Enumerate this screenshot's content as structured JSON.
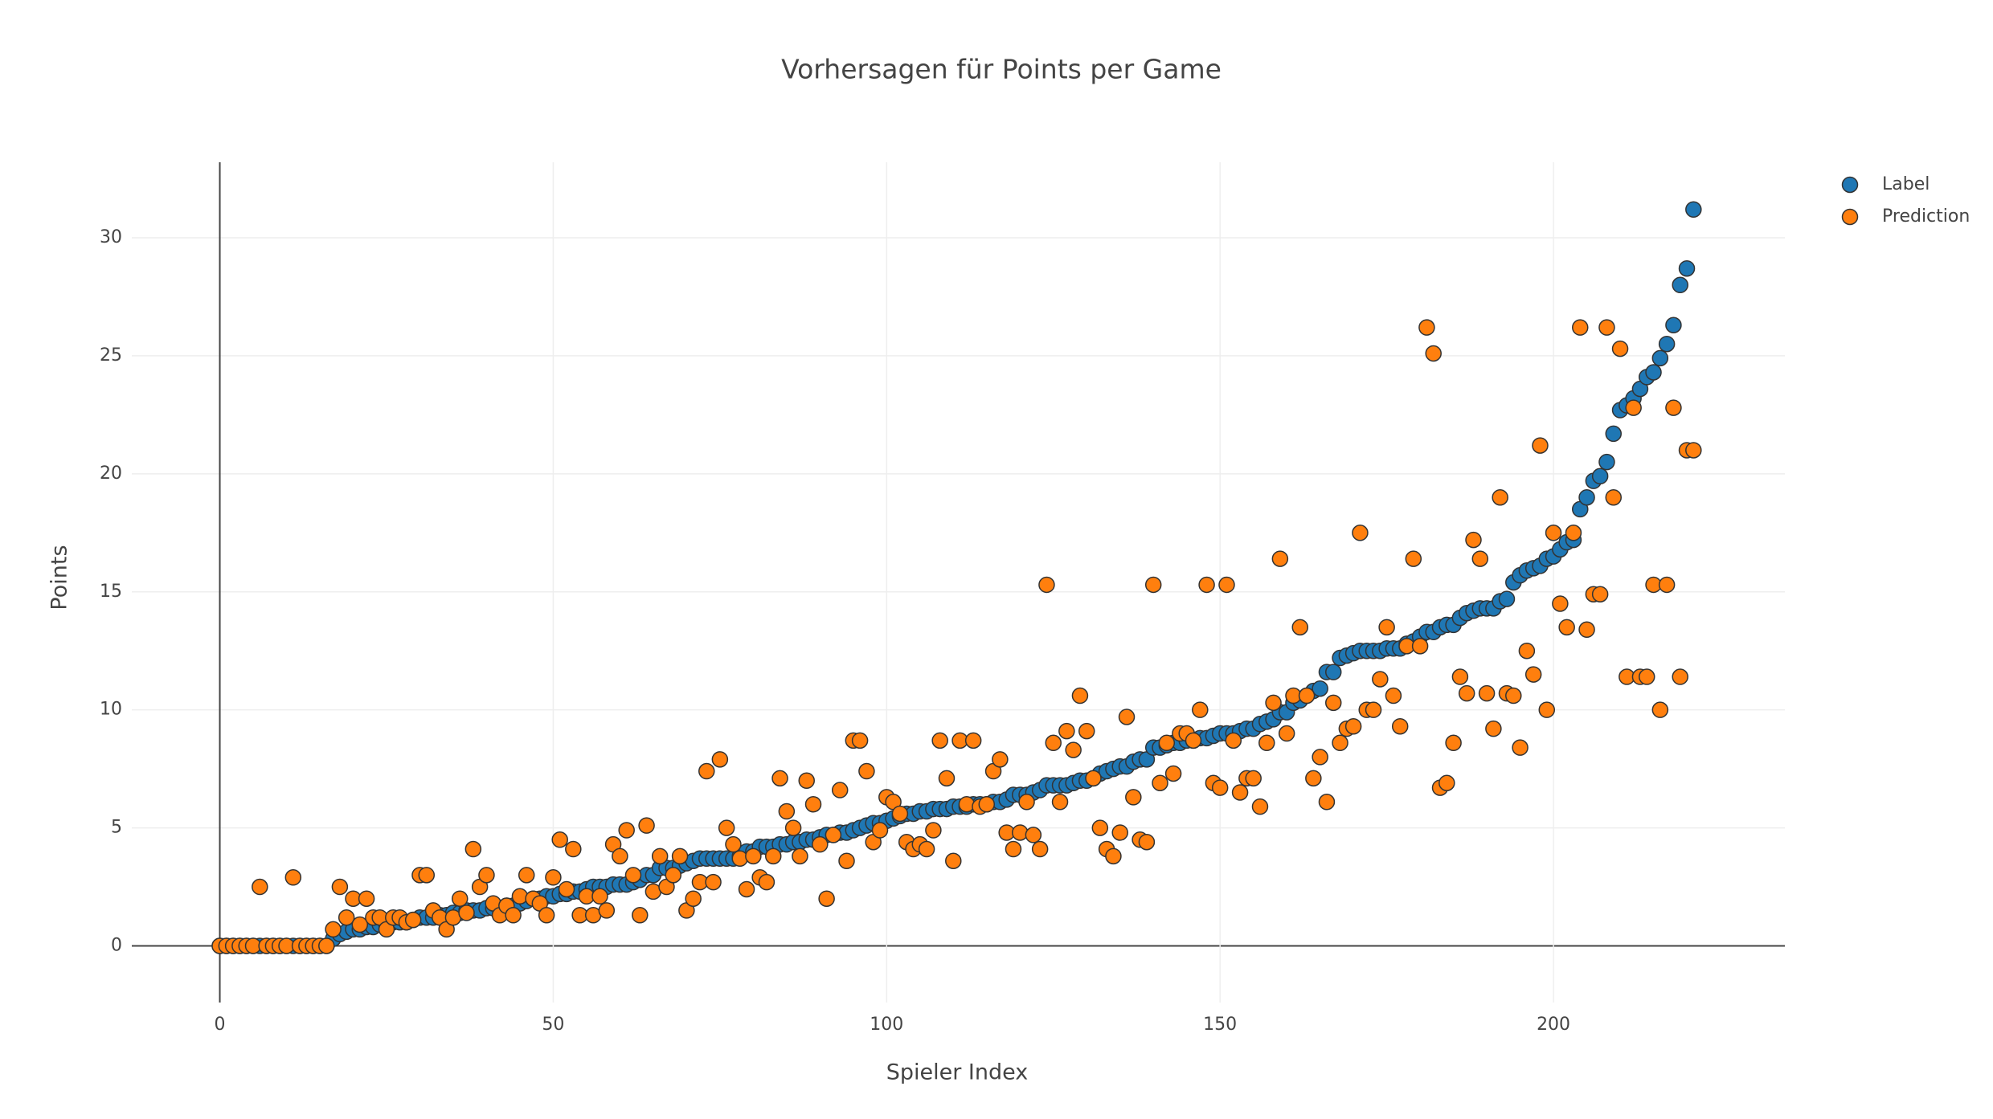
{
  "chart_data": {
    "type": "scatter",
    "title": "Vorhersagen für Points per Game",
    "x_label": "Spieler Index",
    "y_label": "Points",
    "xlim": [
      -13.2,
      234.7
    ],
    "ylim": [
      -2.4,
      33.2
    ],
    "xticks": [
      0,
      50,
      100,
      150,
      200
    ],
    "yticks": [
      0,
      5,
      10,
      15,
      20,
      25,
      30
    ],
    "grid": true,
    "legend_position": "right",
    "x": [
      0,
      1,
      2,
      3,
      4,
      5,
      6,
      7,
      8,
      9,
      10,
      11,
      12,
      13,
      14,
      15,
      16,
      17,
      18,
      19,
      20,
      21,
      22,
      23,
      24,
      25,
      26,
      27,
      28,
      29,
      30,
      31,
      32,
      33,
      34,
      35,
      36,
      37,
      38,
      39,
      40,
      41,
      42,
      43,
      44,
      45,
      46,
      47,
      48,
      49,
      50,
      51,
      52,
      53,
      54,
      55,
      56,
      57,
      58,
      59,
      60,
      61,
      62,
      63,
      64,
      65,
      66,
      67,
      68,
      69,
      70,
      71,
      72,
      73,
      74,
      75,
      76,
      77,
      78,
      79,
      80,
      81,
      82,
      83,
      84,
      85,
      86,
      87,
      88,
      89,
      90,
      91,
      92,
      93,
      94,
      95,
      96,
      97,
      98,
      99,
      100,
      101,
      102,
      103,
      104,
      105,
      106,
      107,
      108,
      109,
      110,
      111,
      112,
      113,
      114,
      115,
      116,
      117,
      118,
      119,
      120,
      121,
      122,
      123,
      124,
      125,
      126,
      127,
      128,
      129,
      130,
      131,
      132,
      133,
      134,
      135,
      136,
      137,
      138,
      139,
      140,
      141,
      142,
      143,
      144,
      145,
      146,
      147,
      148,
      149,
      150,
      151,
      152,
      153,
      154,
      155,
      156,
      157,
      158,
      159,
      160,
      161,
      162,
      163,
      164,
      165,
      166,
      167,
      168,
      169,
      170,
      171,
      172,
      173,
      174,
      175,
      176,
      177,
      178,
      179,
      180,
      181,
      182,
      183,
      184,
      185,
      186,
      187,
      188,
      189,
      190,
      191,
      192,
      193,
      194,
      195,
      196,
      197,
      198,
      199,
      200,
      201,
      202,
      203,
      204,
      205,
      206,
      207,
      208,
      209,
      210,
      211,
      212,
      213,
      214,
      215,
      216,
      217,
      218,
      219,
      220,
      221
    ],
    "series": [
      {
        "name": "Label",
        "color": "#1f77b4",
        "values": [
          0,
          0,
          0,
          0,
          0,
          0,
          0,
          0,
          0,
          0,
          0,
          0,
          0,
          0,
          0,
          0,
          0,
          0.3,
          0.5,
          0.6,
          0.7,
          0.7,
          0.8,
          0.8,
          0.9,
          0.9,
          1.0,
          1.0,
          1.0,
          1.1,
          1.2,
          1.2,
          1.2,
          1.3,
          1.3,
          1.4,
          1.4,
          1.5,
          1.5,
          1.5,
          1.6,
          1.6,
          1.6,
          1.7,
          1.7,
          1.8,
          1.9,
          2.0,
          2.0,
          2.1,
          2.1,
          2.2,
          2.2,
          2.3,
          2.3,
          2.4,
          2.5,
          2.5,
          2.5,
          2.6,
          2.6,
          2.6,
          2.7,
          2.8,
          3.0,
          3.0,
          3.3,
          3.3,
          3.3,
          3.4,
          3.5,
          3.6,
          3.7,
          3.7,
          3.7,
          3.7,
          3.7,
          3.7,
          3.8,
          4.0,
          4.0,
          4.2,
          4.2,
          4.2,
          4.3,
          4.3,
          4.4,
          4.4,
          4.5,
          4.5,
          4.6,
          4.7,
          4.7,
          4.8,
          4.8,
          4.9,
          5.0,
          5.1,
          5.2,
          5.2,
          5.3,
          5.4,
          5.5,
          5.6,
          5.6,
          5.7,
          5.7,
          5.8,
          5.8,
          5.8,
          5.9,
          5.9,
          5.9,
          6.0,
          6.0,
          6.0,
          6.1,
          6.1,
          6.2,
          6.4,
          6.4,
          6.4,
          6.5,
          6.6,
          6.8,
          6.8,
          6.8,
          6.8,
          6.9,
          7.0,
          7.0,
          7.1,
          7.3,
          7.4,
          7.5,
          7.6,
          7.6,
          7.8,
          7.9,
          7.9,
          8.4,
          8.4,
          8.5,
          8.6,
          8.6,
          8.7,
          8.7,
          8.8,
          8.8,
          8.9,
          9.0,
          9.0,
          9.0,
          9.1,
          9.2,
          9.2,
          9.4,
          9.5,
          9.6,
          9.9,
          9.9,
          10.3,
          10.4,
          10.6,
          10.8,
          10.9,
          11.6,
          11.6,
          12.2,
          12.3,
          12.4,
          12.5,
          12.5,
          12.5,
          12.5,
          12.6,
          12.6,
          12.6,
          12.8,
          12.9,
          13.1,
          13.3,
          13.3,
          13.5,
          13.6,
          13.6,
          13.9,
          14.1,
          14.2,
          14.3,
          14.3,
          14.3,
          14.6,
          14.7,
          15.4,
          15.7,
          15.9,
          16.0,
          16.1,
          16.4,
          16.5,
          16.8,
          17.1,
          17.2,
          18.5,
          19.0,
          19.7,
          19.9,
          20.5,
          21.7,
          22.7,
          22.9,
          23.2,
          23.6,
          24.1,
          24.3,
          24.9,
          25.5,
          26.3,
          28.0,
          28.7,
          31.2
        ]
      },
      {
        "name": "Prediction",
        "color": "#ff7f0e",
        "values": [
          0,
          0,
          0,
          0,
          0,
          0,
          2.5,
          0,
          0,
          0,
          0,
          2.9,
          0,
          0,
          0,
          0,
          0,
          0.7,
          2.5,
          1.2,
          2.0,
          0.9,
          2.0,
          1.2,
          1.2,
          0.7,
          1.2,
          1.2,
          1.0,
          1.1,
          3.0,
          3.0,
          1.5,
          1.2,
          0.7,
          1.2,
          2.0,
          1.4,
          4.1,
          2.5,
          3.0,
          1.8,
          1.3,
          1.7,
          1.3,
          2.1,
          3.0,
          2.0,
          1.8,
          1.3,
          2.9,
          4.5,
          2.4,
          4.1,
          1.3,
          2.1,
          1.3,
          2.1,
          1.5,
          4.3,
          3.8,
          4.9,
          3.0,
          1.3,
          5.1,
          2.3,
          3.8,
          2.5,
          3.0,
          3.8,
          1.5,
          2.0,
          2.7,
          7.4,
          2.7,
          7.9,
          5.0,
          4.3,
          3.7,
          2.4,
          3.8,
          2.9,
          2.7,
          3.8,
          7.1,
          5.7,
          5.0,
          3.8,
          7.0,
          6.0,
          4.3,
          2.0,
          4.7,
          6.6,
          3.6,
          8.7,
          8.7,
          7.4,
          4.4,
          4.9,
          6.3,
          6.1,
          5.6,
          4.4,
          4.1,
          4.3,
          4.1,
          4.9,
          8.7,
          7.1,
          3.6,
          8.7,
          6.0,
          8.7,
          5.9,
          6.0,
          7.4,
          7.9,
          4.8,
          4.1,
          4.8,
          6.1,
          4.7,
          4.1,
          15.3,
          8.6,
          6.1,
          9.1,
          8.3,
          10.6,
          9.1,
          7.1,
          5.0,
          4.1,
          3.8,
          4.8,
          9.7,
          6.3,
          4.5,
          4.4,
          15.3,
          6.9,
          8.6,
          7.3,
          9.0,
          9.0,
          8.7,
          10.0,
          15.3,
          6.9,
          6.7,
          15.3,
          8.7,
          6.5,
          7.1,
          7.1,
          5.9,
          8.6,
          10.3,
          16.4,
          9.0,
          10.6,
          13.5,
          10.6,
          7.1,
          8.0,
          6.1,
          10.3,
          8.6,
          9.2,
          9.3,
          17.5,
          10.0,
          10.0,
          11.3,
          13.5,
          10.6,
          9.3,
          12.7,
          16.4,
          12.7,
          26.2,
          25.1,
          6.7,
          6.9,
          8.6,
          11.4,
          10.7,
          17.2,
          16.4,
          10.7,
          9.2,
          19.0,
          10.7,
          10.6,
          8.4,
          12.5,
          11.5,
          21.2,
          10.0,
          17.5,
          14.5,
          13.5,
          17.5,
          26.2,
          13.4,
          14.9,
          14.9,
          26.2,
          19.0,
          25.3,
          11.4,
          22.8,
          11.4,
          11.4,
          15.3,
          10.0,
          15.3,
          22.8,
          11.4,
          21.0,
          21.0
        ]
      }
    ]
  }
}
